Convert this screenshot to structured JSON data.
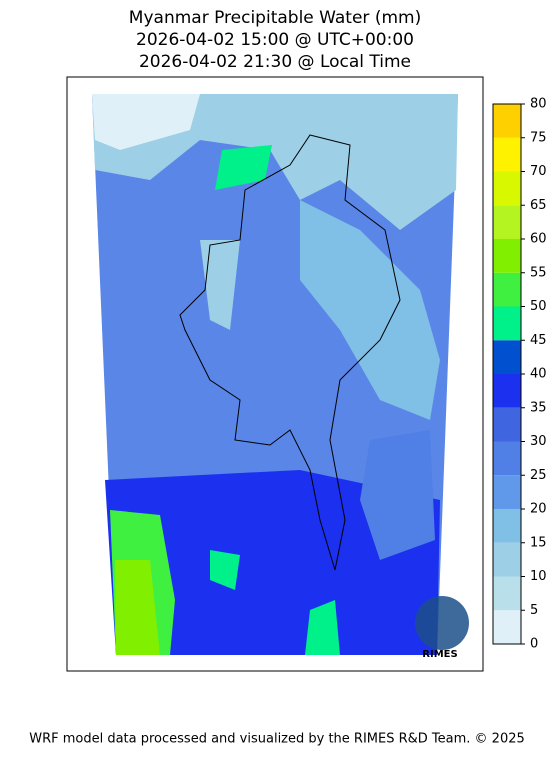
{
  "title": [
    "Myanmar Precipitable Water (mm)",
    "2026-04-02 15:00 @ UTC+00:00",
    "2026-04-02 21:30 @ Local Time"
  ],
  "colorbar": {
    "lim": [
      0,
      80
    ],
    "ticks": [
      0,
      5,
      10,
      15,
      20,
      25,
      30,
      35,
      40,
      45,
      50,
      55,
      60,
      65,
      70,
      75,
      80
    ],
    "colors": [
      "#e0f0f8",
      "#b8dfea",
      "#9dd0e6",
      "#80bfe6",
      "#6098ea",
      "#5080e6",
      "#3f66e0",
      "#1c30f0",
      "#0050d0",
      "#00f08a",
      "#40f040",
      "#80f000",
      "#b4f420",
      "#d8f800",
      "#fff200",
      "#ffd000"
    ]
  },
  "logo": "RIMES",
  "footer": "WRF model data processed and visualized by the RIMES R&D Team. © 2025"
}
